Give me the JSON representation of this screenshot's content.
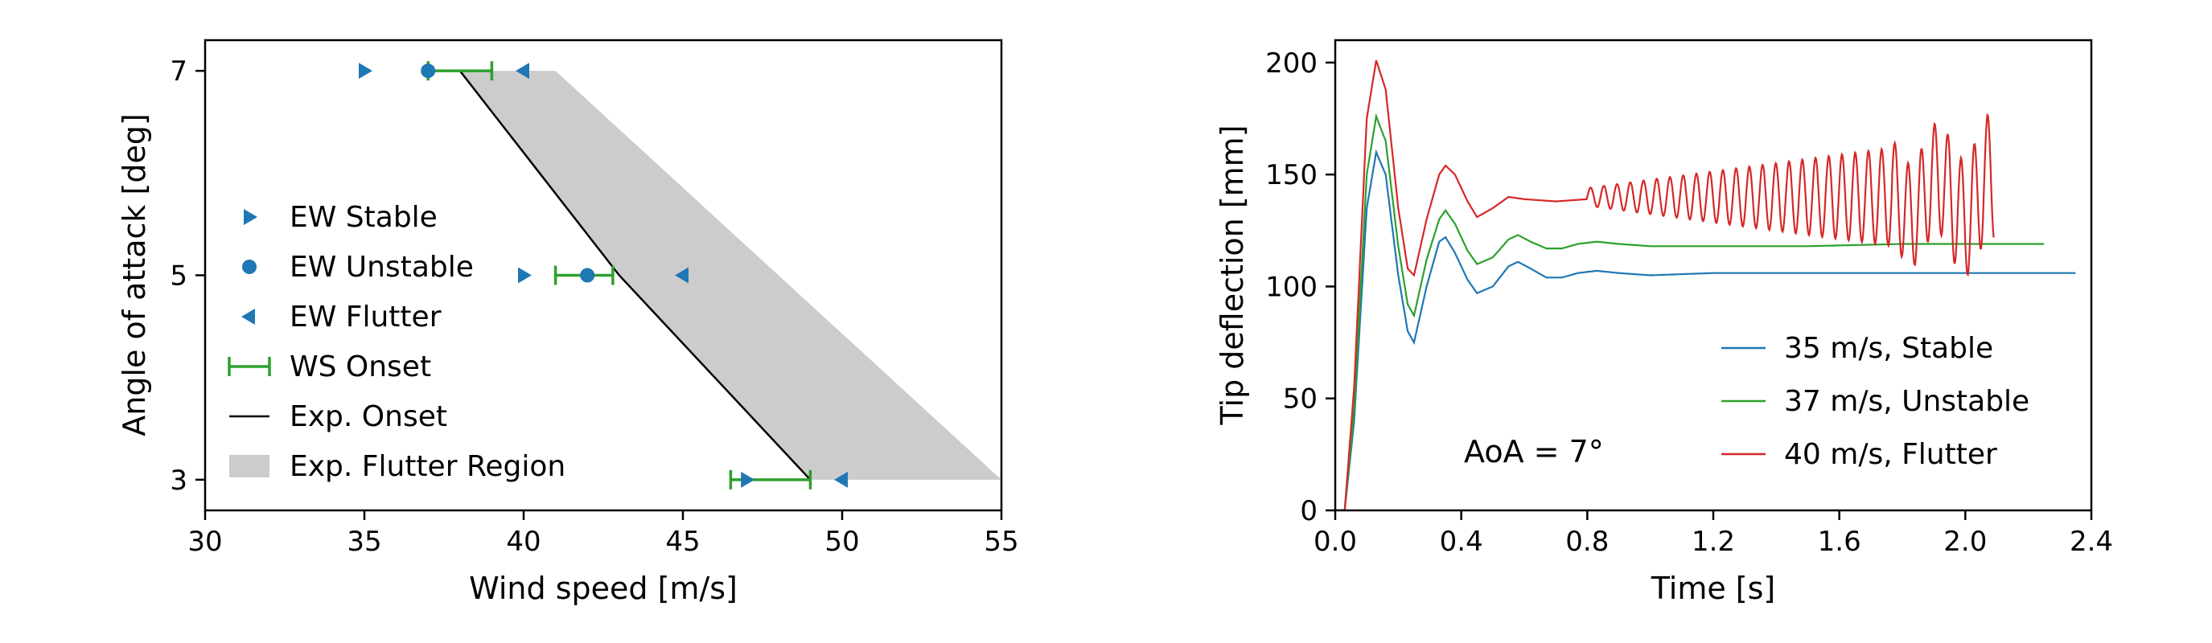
{
  "chart_data": [
    {
      "type": "scatter",
      "xlabel": "Wind speed [m/s]",
      "ylabel": "Angle of attack [deg]",
      "xlim": [
        30,
        55
      ],
      "ylim": [
        2.7,
        7.3
      ],
      "xticks": [
        30,
        35,
        40,
        45,
        50,
        55
      ],
      "yticks": [
        3,
        5,
        7
      ],
      "legend_position": "left",
      "colors": {
        "ew": "#1f77b4",
        "ws": "#2ca02c",
        "onset": "#000000",
        "region": "#cccccc"
      },
      "series": [
        {
          "name": "EW Stable",
          "marker": "triangle-right",
          "points": [
            [
              35,
              7
            ],
            [
              40,
              5
            ],
            [
              47,
              3
            ]
          ]
        },
        {
          "name": "EW Unstable",
          "marker": "circle",
          "points": [
            [
              37,
              7
            ],
            [
              42,
              5
            ]
          ]
        },
        {
          "name": "EW Flutter",
          "marker": "triangle-left",
          "points": [
            [
              40,
              7
            ],
            [
              45,
              5
            ],
            [
              50,
              3
            ]
          ]
        },
        {
          "name": "WS Onset",
          "marker": "errorbar",
          "ranges": [
            {
              "y": 7,
              "x_min": 37,
              "x_max": 39
            },
            {
              "y": 5,
              "x_min": 41,
              "x_max": 42.8
            },
            {
              "y": 3,
              "x_min": 46.5,
              "x_max": 49
            }
          ]
        },
        {
          "name": "Exp. Onset",
          "marker": "line",
          "points": [
            [
              38,
              7
            ],
            [
              43,
              5
            ],
            [
              49,
              3
            ]
          ]
        },
        {
          "name": "Exp. Flutter Region",
          "marker": "fill",
          "polygon": [
            [
              38,
              7
            ],
            [
              41,
              7
            ],
            [
              55,
              3
            ],
            [
              49,
              3
            ],
            [
              43,
              5
            ]
          ]
        }
      ]
    },
    {
      "type": "line",
      "xlabel": "Time [s]",
      "ylabel": "Tip deflection [mm]",
      "xlim": [
        0,
        2.4
      ],
      "ylim": [
        0,
        210
      ],
      "xticks": [
        0.0,
        0.4,
        0.8,
        1.2,
        1.6,
        2.0,
        2.4
      ],
      "xtick_labels": [
        "0.0",
        "0.4",
        "0.8",
        "1.2",
        "1.6",
        "2.0",
        "2.4"
      ],
      "yticks": [
        0,
        50,
        100,
        150,
        200
      ],
      "legend_position": "lower-right",
      "annotation": "AoA = 7°",
      "series": [
        {
          "name": "35 m/s, Stable",
          "color": "#1f77b4",
          "end_time": 2.35,
          "points": [
            [
              0.0,
              0
            ],
            [
              0.03,
              0
            ],
            [
              0.06,
              40
            ],
            [
              0.1,
              135
            ],
            [
              0.13,
              160
            ],
            [
              0.16,
              150
            ],
            [
              0.2,
              105
            ],
            [
              0.23,
              80
            ],
            [
              0.25,
              75
            ],
            [
              0.29,
              100
            ],
            [
              0.33,
              120
            ],
            [
              0.35,
              122
            ],
            [
              0.38,
              115
            ],
            [
              0.42,
              103
            ],
            [
              0.45,
              97
            ],
            [
              0.5,
              100
            ],
            [
              0.55,
              109
            ],
            [
              0.58,
              111
            ],
            [
              0.62,
              108
            ],
            [
              0.67,
              104
            ],
            [
              0.72,
              104
            ],
            [
              0.77,
              106
            ],
            [
              0.83,
              107
            ],
            [
              0.9,
              106
            ],
            [
              1.0,
              105
            ],
            [
              1.2,
              106
            ],
            [
              1.5,
              106
            ],
            [
              1.8,
              106
            ],
            [
              2.1,
              106
            ],
            [
              2.35,
              106
            ]
          ],
          "settle": 106,
          "osc_amp_start": 0,
          "osc_amp_end": 0,
          "osc_period": 0.04
        },
        {
          "name": "37 m/s, Unstable",
          "color": "#2ca02c",
          "end_time": 2.25,
          "points": [
            [
              0.0,
              0
            ],
            [
              0.03,
              0
            ],
            [
              0.06,
              45
            ],
            [
              0.1,
              150
            ],
            [
              0.13,
              176
            ],
            [
              0.16,
              165
            ],
            [
              0.2,
              118
            ],
            [
              0.23,
              92
            ],
            [
              0.25,
              87
            ],
            [
              0.29,
              112
            ],
            [
              0.33,
              130
            ],
            [
              0.35,
              134
            ],
            [
              0.38,
              128
            ],
            [
              0.42,
              116
            ],
            [
              0.45,
              110
            ],
            [
              0.5,
              113
            ],
            [
              0.55,
              121
            ],
            [
              0.58,
              123
            ],
            [
              0.62,
              120
            ],
            [
              0.67,
              117
            ],
            [
              0.72,
              117
            ],
            [
              0.77,
              119
            ],
            [
              0.83,
              120
            ],
            [
              0.9,
              119
            ],
            [
              1.0,
              118
            ],
            [
              1.2,
              118
            ],
            [
              1.5,
              118
            ],
            [
              1.8,
              119
            ],
            [
              2.1,
              119
            ],
            [
              2.25,
              119
            ]
          ],
          "settle": 119,
          "osc_amp_start": 0.4,
          "osc_amp_end": 2,
          "osc_period": 0.04
        },
        {
          "name": "40 m/s, Flutter",
          "color": "#d62728",
          "end_time": 2.09,
          "points": [
            [
              0.0,
              0
            ],
            [
              0.03,
              0
            ],
            [
              0.06,
              55
            ],
            [
              0.1,
              175
            ],
            [
              0.13,
              201
            ],
            [
              0.16,
              188
            ],
            [
              0.2,
              135
            ],
            [
              0.23,
              108
            ],
            [
              0.25,
              105
            ],
            [
              0.29,
              130
            ],
            [
              0.33,
              150
            ],
            [
              0.35,
              154
            ],
            [
              0.38,
              150
            ],
            [
              0.42,
              138
            ],
            [
              0.45,
              131
            ],
            [
              0.5,
              135
            ],
            [
              0.55,
              140
            ],
            [
              0.6,
              139
            ],
            [
              0.7,
              138
            ],
            [
              0.8,
              139
            ]
          ],
          "settle": 140,
          "osc_amp_start": 4,
          "osc_amp_end": 28,
          "osc_period": 0.042
        }
      ]
    }
  ]
}
